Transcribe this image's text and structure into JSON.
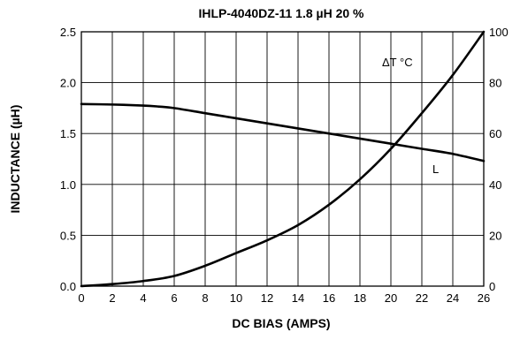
{
  "chart_data": {
    "type": "line",
    "title": "IHLP-4040DZ-11 1.8 µH 20 %",
    "xlabel": "DC BIAS (AMPS)",
    "ylabel": "INDUCTANCE (µH)",
    "y2label": "",
    "xlim": [
      0,
      26
    ],
    "ylim": [
      0,
      2.5
    ],
    "y2lim": [
      0,
      100
    ],
    "grid": true,
    "x_ticks": [
      "0",
      "2",
      "4",
      "6",
      "8",
      "10",
      "12",
      "14",
      "16",
      "18",
      "20",
      "22",
      "24",
      "26"
    ],
    "y_ticks": [
      "0.0",
      "0.5",
      "1.0",
      "1.5",
      "2.0",
      "2.5"
    ],
    "y2_ticks": [
      "0",
      "20",
      "40",
      "60",
      "80",
      "100"
    ],
    "series": [
      {
        "name": "L",
        "axis": "left",
        "x": [
          0,
          2,
          4,
          5,
          6,
          8,
          10,
          12,
          14,
          16,
          18,
          20,
          22,
          24,
          26
        ],
        "y": [
          1.79,
          1.785,
          1.775,
          1.765,
          1.75,
          1.7,
          1.65,
          1.6,
          1.55,
          1.5,
          1.45,
          1.4,
          1.35,
          1.3,
          1.23
        ]
      },
      {
        "name": "ΔT °C",
        "axis": "right",
        "x": [
          0,
          2,
          4,
          6,
          8,
          10,
          12,
          14,
          16,
          18,
          20,
          22,
          24,
          26
        ],
        "y": [
          0,
          0.8,
          2,
          4,
          8,
          13,
          18,
          24,
          32,
          42,
          54,
          68,
          83,
          100
        ]
      }
    ]
  },
  "colors": {
    "line": "#000000",
    "grid": "#000000",
    "background": "#ffffff"
  }
}
